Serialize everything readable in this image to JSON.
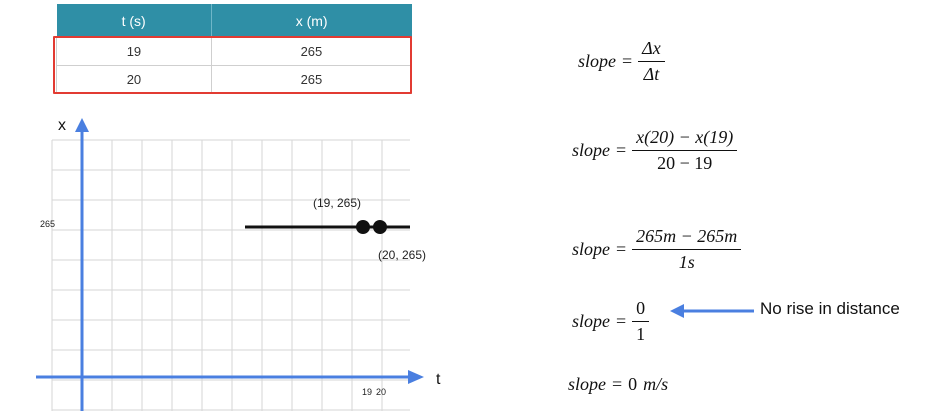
{
  "table": {
    "headers": [
      "t (s)",
      "x (m)"
    ],
    "rows": [
      [
        "19",
        "265"
      ],
      [
        "20",
        "265"
      ]
    ]
  },
  "graph": {
    "y_axis_label": "x",
    "x_axis_label": "t",
    "y_tick_label": "265",
    "x_tick_labels": [
      "19",
      "20"
    ],
    "point_labels": [
      "(19, 265)",
      "(20, 265)"
    ],
    "points": [
      [
        19,
        265
      ],
      [
        20,
        265
      ]
    ],
    "axis_color": "#4a7fe0",
    "line_color": "#111111"
  },
  "equations": {
    "lhs": "slope",
    "eq": "=",
    "step1": {
      "num": "Δx",
      "den": "Δt"
    },
    "step2": {
      "num": "x(20) − x(19)",
      "den": "20 − 19"
    },
    "step3": {
      "num": "265m − 265m",
      "den": "1s"
    },
    "step4": {
      "num": "0",
      "den": "1"
    },
    "step5": {
      "value": "0",
      "unit": "m/s"
    }
  },
  "note": {
    "text": "No rise in distance",
    "arrow_color": "#4a7fe0"
  }
}
